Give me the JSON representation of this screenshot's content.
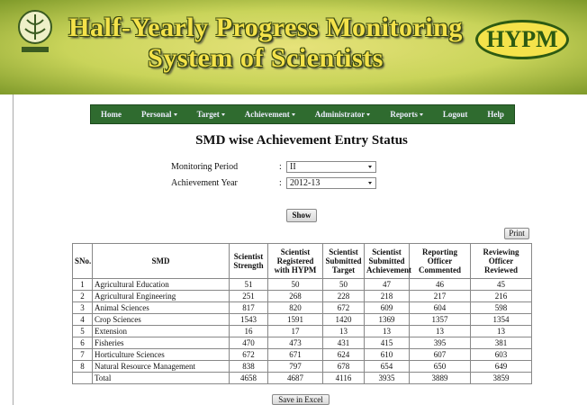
{
  "header": {
    "title_line1": "Half-Yearly Progress Monitoring",
    "title_line2": "System of Scientists",
    "logo": "HYPM"
  },
  "nav": [
    {
      "label": "Home",
      "has_menu": false
    },
    {
      "label": "Personal",
      "has_menu": true
    },
    {
      "label": "Target",
      "has_menu": true
    },
    {
      "label": "Achievement",
      "has_menu": true
    },
    {
      "label": "Administrator",
      "has_menu": true
    },
    {
      "label": "Reports",
      "has_menu": true
    },
    {
      "label": "Logout",
      "has_menu": false
    },
    {
      "label": "Help",
      "has_menu": false
    }
  ],
  "page_title": "SMD wise Achievement Entry Status",
  "form": {
    "separator": ":",
    "fields": [
      {
        "label": "Monitoring Period",
        "value": "II"
      },
      {
        "label": "Achievement Year",
        "value": "2012-13"
      }
    ],
    "show_button": "Show",
    "print_button": "Print",
    "export_button": "Save in Excel"
  },
  "table": {
    "columns": [
      "SNo.",
      "SMD",
      "Scientist Strength",
      "Scientist Registered with HYPM",
      "Scientist Submitted Target",
      "Scientist Submitted Achievement",
      "Reporting Officer Commented",
      "Reviewing Officer Reviewed"
    ],
    "rows": [
      [
        1,
        "Agricultural Education",
        51,
        50,
        50,
        47,
        46,
        45
      ],
      [
        2,
        "Agricultural Engineering",
        251,
        268,
        228,
        218,
        217,
        216
      ],
      [
        3,
        "Animal Sciences",
        817,
        820,
        672,
        609,
        604,
        598
      ],
      [
        4,
        "Crop Sciences",
        1543,
        1591,
        1420,
        1369,
        1357,
        1354
      ],
      [
        5,
        "Extension",
        16,
        17,
        13,
        13,
        13,
        13
      ],
      [
        6,
        "Fisheries",
        470,
        473,
        431,
        415,
        395,
        381
      ],
      [
        7,
        "Horticulture Sciences",
        672,
        671,
        624,
        610,
        607,
        603
      ],
      [
        8,
        "Natural Resource Management",
        838,
        797,
        678,
        654,
        650,
        649
      ]
    ],
    "total": {
      "label": "Total",
      "values": [
        4658,
        4687,
        4116,
        3935,
        3889,
        3859
      ]
    }
  }
}
